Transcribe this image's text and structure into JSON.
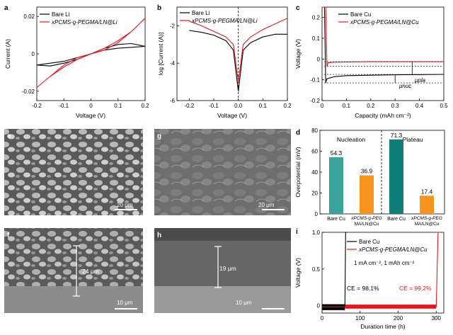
{
  "panels": {
    "a": {
      "letter": "a",
      "xlabel": "Voltage (V)",
      "ylabel": "Current (A)",
      "xticks": [
        "-0.2",
        "-0.1",
        "0",
        "0.1",
        "0.2"
      ],
      "yticks": [
        "0.02",
        "0",
        "-0.02"
      ],
      "legend": [
        "Bare Li",
        "xPCMS-g-PEGMA/LN@Li"
      ]
    },
    "b": {
      "letter": "b",
      "xlabel": "Voltage (V)",
      "ylabel": "log [Current (A)]",
      "xticks": [
        "-0.2",
        "-0.1",
        "0.0",
        "0.1",
        "0.2"
      ],
      "yticks": [
        "-2",
        "-4",
        "-6"
      ],
      "legend": [
        "Bare Li",
        "xPCMS-g-PEGMA/LN@Li"
      ]
    },
    "c": {
      "letter": "c",
      "xlabel": "Capacity (mAh cm⁻²)",
      "ylabel": "Voltage (V)",
      "xticks": [
        "0",
        "0.1",
        "0.2",
        "0.3",
        "0.4",
        "0.5"
      ],
      "yticks": [
        "0.2",
        "0.1",
        "0",
        "-0.1",
        "-0.2"
      ],
      "legend": [
        "Bare Cu",
        "xPCMS-g-PEGMA/LN@Cu"
      ],
      "ann_pla": "μpla",
      "ann_nuc": "μnuc"
    },
    "d": {
      "letter": "d",
      "ylabel": "Overpotential (mV)",
      "yticks": [
        "0",
        "20",
        "40",
        "60",
        "80"
      ],
      "group1": "Nucleation",
      "group2": "Plateau",
      "cat1": "Bare Cu",
      "cat2a": "xPCMS-g-PEG",
      "cat2b": "MA/LN@Cu",
      "cat3": "Bare Cu",
      "cat4a": "xPCMS-g-PEG",
      "cat4b": "MA/LN@Cu"
    },
    "i": {
      "letter": "i",
      "xlabel": "Duration time (h)",
      "ylabel": "Voltage (V)",
      "xticks": [
        "0",
        "100",
        "200",
        "300"
      ],
      "yticks": [
        "1.0",
        "0.5",
        "0"
      ],
      "legend": [
        "Bare Cu",
        "xPCMS-g-PEGMA/LN@Cu"
      ],
      "condition": "1 mA cm⁻², 1 mAh cm⁻²",
      "ce1": "CE = 98.1%",
      "ce2": "CE = 99.2%"
    },
    "sem": {
      "e": {
        "letter": "e",
        "scale": "20 μm"
      },
      "g": {
        "letter": "g",
        "scale": "20 μm"
      },
      "f": {
        "letter": "f",
        "scale": "10 μm",
        "thickness": "24 μm"
      },
      "h": {
        "letter": "h",
        "scale": "10 μm",
        "thickness": "19 μm"
      }
    }
  },
  "colors": {
    "black": "#000000",
    "red": "#e8161b",
    "teal1": "#3aa39a",
    "orange": "#f7941d",
    "teal2": "#0f7d78"
  },
  "chart_data": [
    {
      "type": "line",
      "panel": "a",
      "xlabel": "Voltage (V)",
      "ylabel": "Current (A)",
      "xlim": [
        -0.2,
        0.2
      ],
      "ylim": [
        -0.025,
        0.025
      ],
      "series": [
        {
          "name": "Bare Li",
          "color": "#000000",
          "x": [
            -0.2,
            -0.15,
            -0.1,
            -0.05,
            0,
            0.05,
            0.1,
            0.15,
            0.2,
            0.15,
            0.1,
            0.05,
            0,
            -0.05,
            -0.1,
            -0.15,
            -0.2
          ],
          "y": [
            -0.006,
            -0.0065,
            -0.005,
            -0.003,
            0,
            0.003,
            0.005,
            0.0055,
            0.004,
            0.0035,
            0.003,
            0.002,
            0,
            -0.002,
            -0.004,
            -0.005,
            -0.006
          ]
        },
        {
          "name": "xPCMS-g-PEGMA/LN@Li",
          "color": "#e8161b",
          "x": [
            -0.2,
            -0.15,
            -0.1,
            -0.05,
            0,
            0.05,
            0.1,
            0.15,
            0.2,
            0.15,
            0.1,
            0.05,
            0,
            -0.05,
            -0.1,
            -0.15,
            -0.2
          ],
          "y": [
            -0.018,
            -0.012,
            -0.006,
            -0.002,
            0,
            0.003,
            0.007,
            0.012,
            0.019,
            0.012,
            0.006,
            0.002,
            0,
            -0.003,
            -0.007,
            -0.012,
            -0.018
          ]
        }
      ]
    },
    {
      "type": "line",
      "panel": "b",
      "xlabel": "Voltage (V)",
      "ylabel": "log [Current (A)]",
      "xlim": [
        -0.25,
        0.2
      ],
      "ylim": [
        -6,
        -1
      ],
      "series": [
        {
          "name": "Bare Li",
          "color": "#000000",
          "x": [
            -0.2,
            -0.15,
            -0.1,
            -0.05,
            -0.02,
            0,
            0.02,
            0.05,
            0.1,
            0.15,
            0.2
          ],
          "y": [
            -2.25,
            -2.35,
            -2.5,
            -2.8,
            -3.3,
            -5.5,
            -3.3,
            -2.9,
            -2.6,
            -2.45,
            -2.45
          ]
        },
        {
          "name": "xPCMS-g-PEGMA/LN@Li",
          "color": "#e8161b",
          "x": [
            -0.2,
            -0.15,
            -0.1,
            -0.05,
            -0.02,
            0,
            0.02,
            0.05,
            0.1,
            0.15,
            0.2
          ],
          "y": [
            -1.75,
            -2.0,
            -2.3,
            -2.6,
            -3.0,
            -5.0,
            -3.0,
            -2.6,
            -2.2,
            -1.9,
            -1.6
          ]
        }
      ]
    },
    {
      "type": "line",
      "panel": "c",
      "xlabel": "Capacity (mAh cm⁻²)",
      "ylabel": "Voltage (V)",
      "xlim": [
        0,
        0.5
      ],
      "ylim": [
        -0.2,
        0.25
      ],
      "series": [
        {
          "name": "Bare Cu",
          "color": "#000000",
          "x": [
            0,
            0.01,
            0.015,
            0.02,
            0.05,
            0.1,
            0.2,
            0.3,
            0.4,
            0.5
          ],
          "y": [
            0.25,
            0.25,
            -0.115,
            -0.095,
            -0.085,
            -0.08,
            -0.078,
            -0.076,
            -0.075,
            -0.074
          ]
        },
        {
          "name": "xPCMS-g-PEGMA/LN@Cu",
          "color": "#e8161b",
          "x": [
            0,
            0.015,
            0.02,
            0.025,
            0.05,
            0.1,
            0.2,
            0.3,
            0.4,
            0.5
          ],
          "y": [
            0.25,
            0.25,
            -0.035,
            -0.018,
            -0.015,
            -0.014,
            -0.013,
            -0.013,
            -0.013,
            -0.013
          ]
        }
      ]
    },
    {
      "type": "bar",
      "panel": "d",
      "ylabel": "Overpotential (mV)",
      "ylim": [
        0,
        80
      ],
      "categories": [
        "Bare Cu",
        "xPCMS-g-PEGMA/LN@Cu",
        "Bare Cu",
        "xPCMS-g-PEGMA/LN@Cu"
      ],
      "groups": [
        "Nucleation",
        "Nucleation",
        "Plateau",
        "Plateau"
      ],
      "values": [
        54.3,
        36.9,
        71.3,
        17.4
      ],
      "labels": [
        "54.3",
        "36.9",
        "71.3",
        "17.4"
      ],
      "colors": [
        "#3aa39a",
        "#f7941d",
        "#0f7d78",
        "#f7941d"
      ]
    },
    {
      "type": "line",
      "panel": "i",
      "xlabel": "Duration time (h)",
      "ylabel": "Voltage (V)",
      "xlim": [
        0,
        320
      ],
      "ylim": [
        -0.1,
        1.0
      ],
      "series": [
        {
          "name": "Bare Cu",
          "color": "#000000",
          "x": [
            0,
            60,
            62,
            65
          ],
          "y": [
            -0.02,
            -0.02,
            1.0,
            1.0
          ]
        },
        {
          "name": "xPCMS-g-PEGMA/LN@Cu",
          "color": "#e8161b",
          "x": [
            0,
            300,
            305,
            310
          ],
          "y": [
            -0.015,
            -0.015,
            1.0,
            1.0
          ]
        }
      ]
    }
  ]
}
